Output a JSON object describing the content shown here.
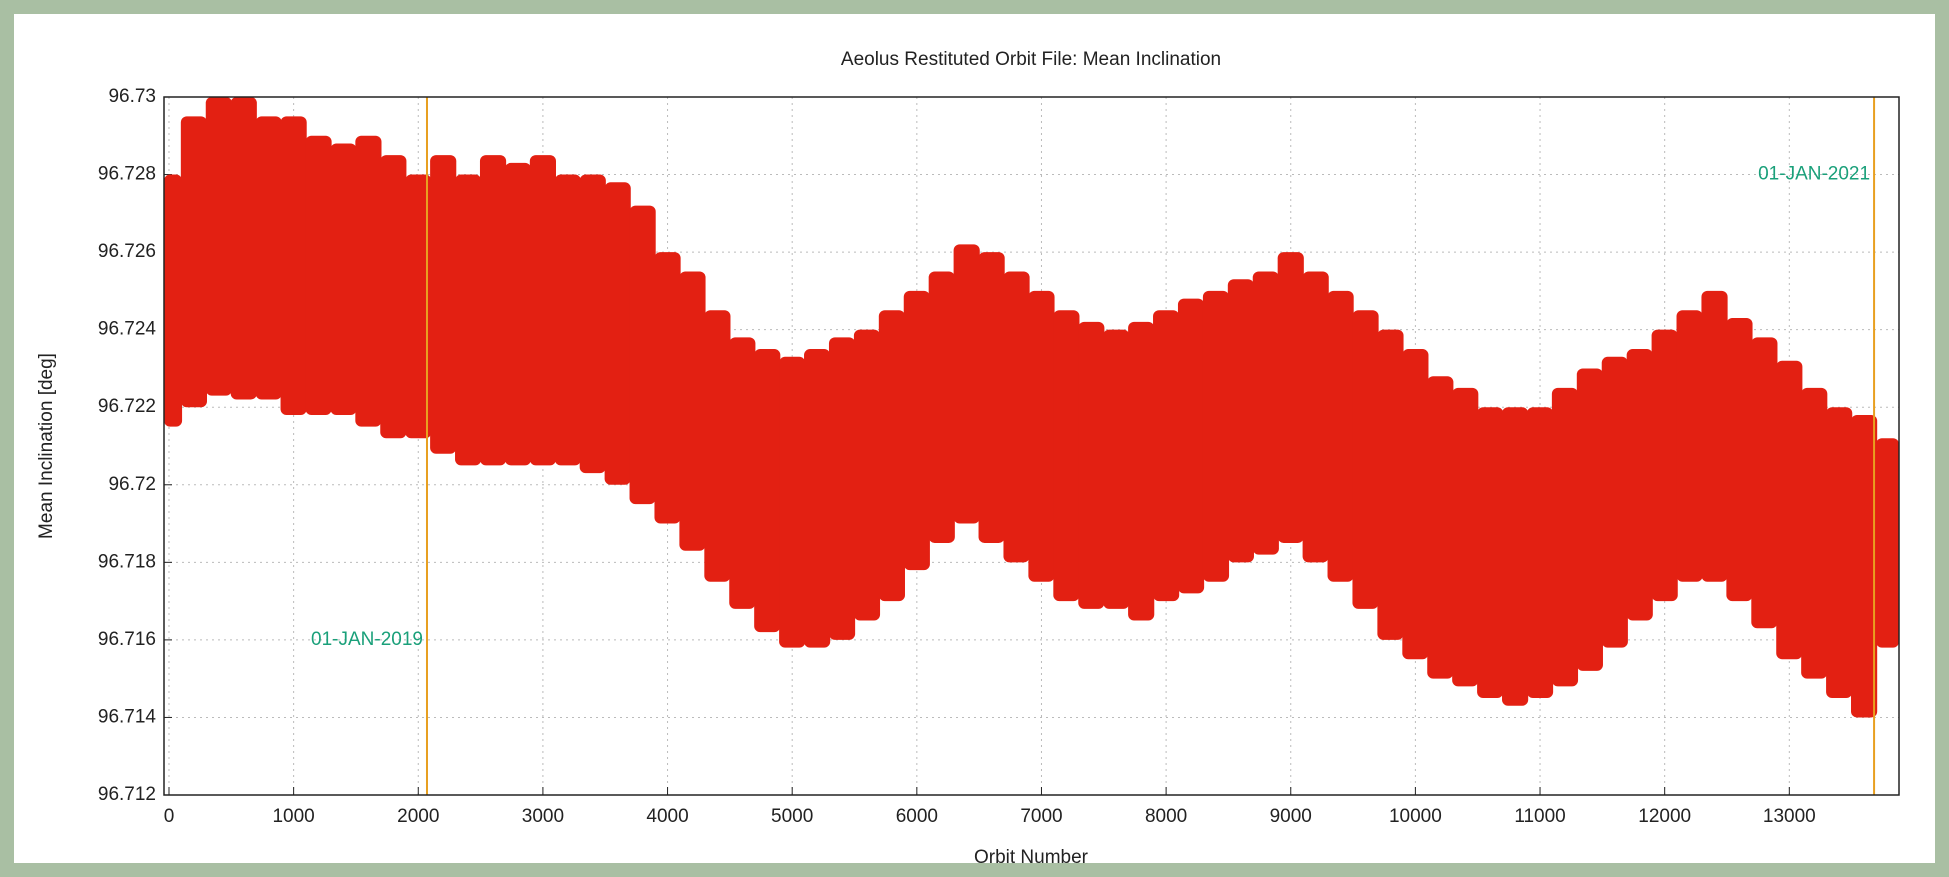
{
  "chart_data": {
    "type": "range",
    "title": "Aeolus Restituted Orbit File: Mean Inclination",
    "xlabel": "Orbit Number",
    "ylabel": "Mean Inclination [deg]",
    "color": "#e32012",
    "x": [
      0,
      200,
      400,
      600,
      800,
      1000,
      1200,
      1400,
      1600,
      1800,
      2000,
      2200,
      2400,
      2600,
      2800,
      3000,
      3200,
      3400,
      3600,
      3800,
      4000,
      4200,
      4400,
      4600,
      4800,
      5000,
      5200,
      5400,
      5600,
      5800,
      6000,
      6200,
      6400,
      6600,
      6800,
      7000,
      7200,
      7400,
      7600,
      7800,
      8000,
      8200,
      8400,
      8600,
      8800,
      9000,
      9200,
      9400,
      9600,
      9800,
      10000,
      10200,
      10400,
      10600,
      10800,
      11000,
      11200,
      11400,
      11600,
      11800,
      12000,
      12200,
      12400,
      12600,
      12800,
      13000,
      13200,
      13400,
      13600,
      13800
    ],
    "high": [
      96.728,
      96.7295,
      96.73,
      96.73,
      96.7295,
      96.7295,
      96.729,
      96.7288,
      96.729,
      96.7285,
      96.728,
      96.7285,
      96.728,
      96.7285,
      96.7283,
      96.7285,
      96.728,
      96.728,
      96.7278,
      96.7272,
      96.726,
      96.7255,
      96.7245,
      96.7238,
      96.7235,
      96.7233,
      96.7235,
      96.7238,
      96.724,
      96.7245,
      96.725,
      96.7255,
      96.7262,
      96.726,
      96.7255,
      96.725,
      96.7245,
      96.7242,
      96.724,
      96.7242,
      96.7245,
      96.7248,
      96.725,
      96.7253,
      96.7255,
      96.726,
      96.7255,
      96.725,
      96.7245,
      96.724,
      96.7235,
      96.7228,
      96.7225,
      96.722,
      96.722,
      96.722,
      96.7225,
      96.723,
      96.7233,
      96.7235,
      96.724,
      96.7245,
      96.725,
      96.7243,
      96.7238,
      96.7232,
      96.7225,
      96.722,
      96.7218,
      96.7212
    ],
    "low": [
      96.7215,
      96.722,
      96.7223,
      96.7222,
      96.7222,
      96.7218,
      96.7218,
      96.7218,
      96.7215,
      96.7212,
      96.7212,
      96.7208,
      96.7205,
      96.7205,
      96.7205,
      96.7205,
      96.7205,
      96.7203,
      96.72,
      96.7195,
      96.719,
      96.7183,
      96.7175,
      96.7168,
      96.7162,
      96.7158,
      96.7158,
      96.716,
      96.7165,
      96.717,
      96.7178,
      96.7185,
      96.719,
      96.7185,
      96.718,
      96.7175,
      96.717,
      96.7168,
      96.7168,
      96.7165,
      96.717,
      96.7172,
      96.7175,
      96.718,
      96.7182,
      96.7185,
      96.718,
      96.7175,
      96.7168,
      96.716,
      96.7155,
      96.715,
      96.7148,
      96.7145,
      96.7143,
      96.7145,
      96.7148,
      96.7152,
      96.7158,
      96.7165,
      96.717,
      96.7175,
      96.7175,
      96.717,
      96.7163,
      96.7155,
      96.715,
      96.7145,
      96.714,
      96.7158
    ],
    "xlim": [
      -40,
      13880
    ],
    "ylim": [
      96.712,
      96.73
    ],
    "xticks": [
      0,
      1000,
      2000,
      3000,
      4000,
      5000,
      6000,
      7000,
      8000,
      9000,
      10000,
      11000,
      12000,
      13000
    ],
    "yticks": [
      96.712,
      96.714,
      96.716,
      96.718,
      96.72,
      96.722,
      96.724,
      96.726,
      96.728,
      96.73
    ],
    "grid": true,
    "annotations": [
      {
        "x": 2070,
        "label": "01-JAN-2019",
        "label_y": 96.716,
        "side": "left"
      },
      {
        "x": 13680,
        "label": "01-JAN-2021",
        "label_y": 96.728,
        "side": "left"
      }
    ],
    "annotation_color": "#e8a020",
    "annotation_text_color": "#1aa07a"
  }
}
